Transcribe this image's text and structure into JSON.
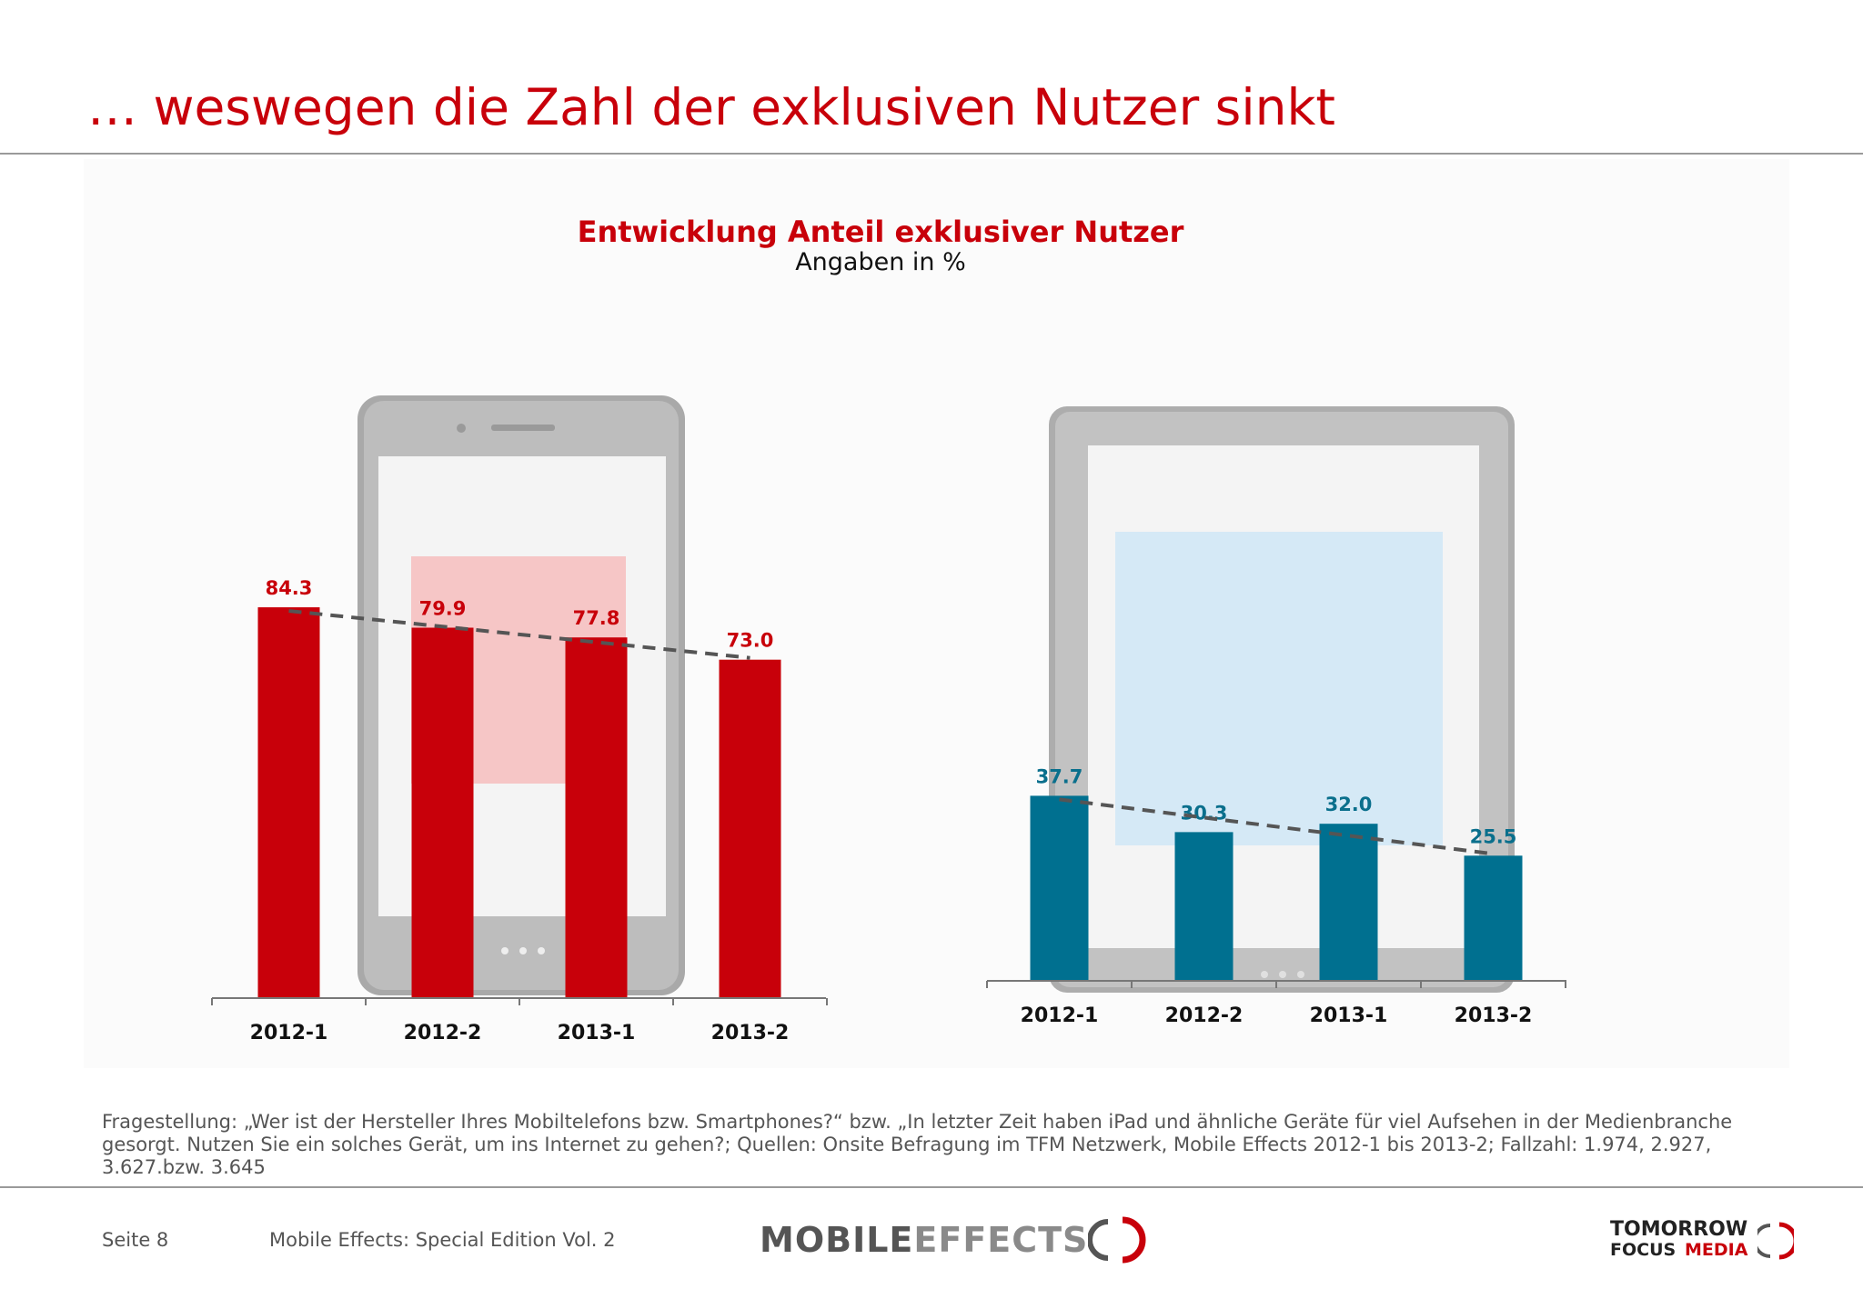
{
  "slide": {
    "title": "… weswegen die Zahl der exklusiven Nutzer sinkt",
    "chart_title": "Entwicklung Anteil exklusiver Nutzer",
    "chart_subtitle": "Angaben in %",
    "footnote": "Fragestellung: „Wer ist der Hersteller Ihres Mobiltelefons bzw. Smartphones?“ bzw. „In letzter Zeit haben iPad und ähnliche Geräte für viel Aufsehen in der Medienbranche gesorgt. Nutzen Sie ein solches Gerät, um ins Internet zu gehen?; Quellen: Onsite Befragung im TFM Netzwerk, Mobile Effects 2012-1 bis 2013-2; Fallzahl: 1.974, 2.927, 3.627.bzw. 3.645",
    "page_label": "Seite 8",
    "publication": "Mobile Effects: Special Edition Vol. 2",
    "logo_mobile": "MOBILE",
    "logo_effects": "EFFECTS",
    "logo_tfm_line1": "TOMORROW",
    "logo_tfm_line2a": "FOCUS",
    "logo_tfm_line2b": "MEDIA"
  },
  "colors": {
    "title_red": "#c8000a",
    "smartphone_bar": "#c8000a",
    "tablet_bar": "#007090",
    "trend_line": "#555555"
  },
  "icons": [
    "smartphone-device-image",
    "tablet-device-image",
    "mobile-effects-logo",
    "tomorrow-focus-media-logo"
  ],
  "chart_data": [
    {
      "type": "bar",
      "device": "smartphone",
      "categories": [
        "2012-1",
        "2012-2",
        "2013-1",
        "2013-2"
      ],
      "values": [
        84.3,
        79.9,
        77.8,
        73.0
      ],
      "labels": [
        "84.3",
        "79.9",
        "77.8",
        "73.0"
      ],
      "trendline": true
    },
    {
      "type": "bar",
      "device": "tablet",
      "categories": [
        "2012-1",
        "2012-2",
        "2013-1",
        "2013-2"
      ],
      "values": [
        37.7,
        30.3,
        32.0,
        25.5
      ],
      "labels": [
        "37.7",
        "30.3",
        "32.0",
        "25.5"
      ],
      "trendline": true
    }
  ]
}
